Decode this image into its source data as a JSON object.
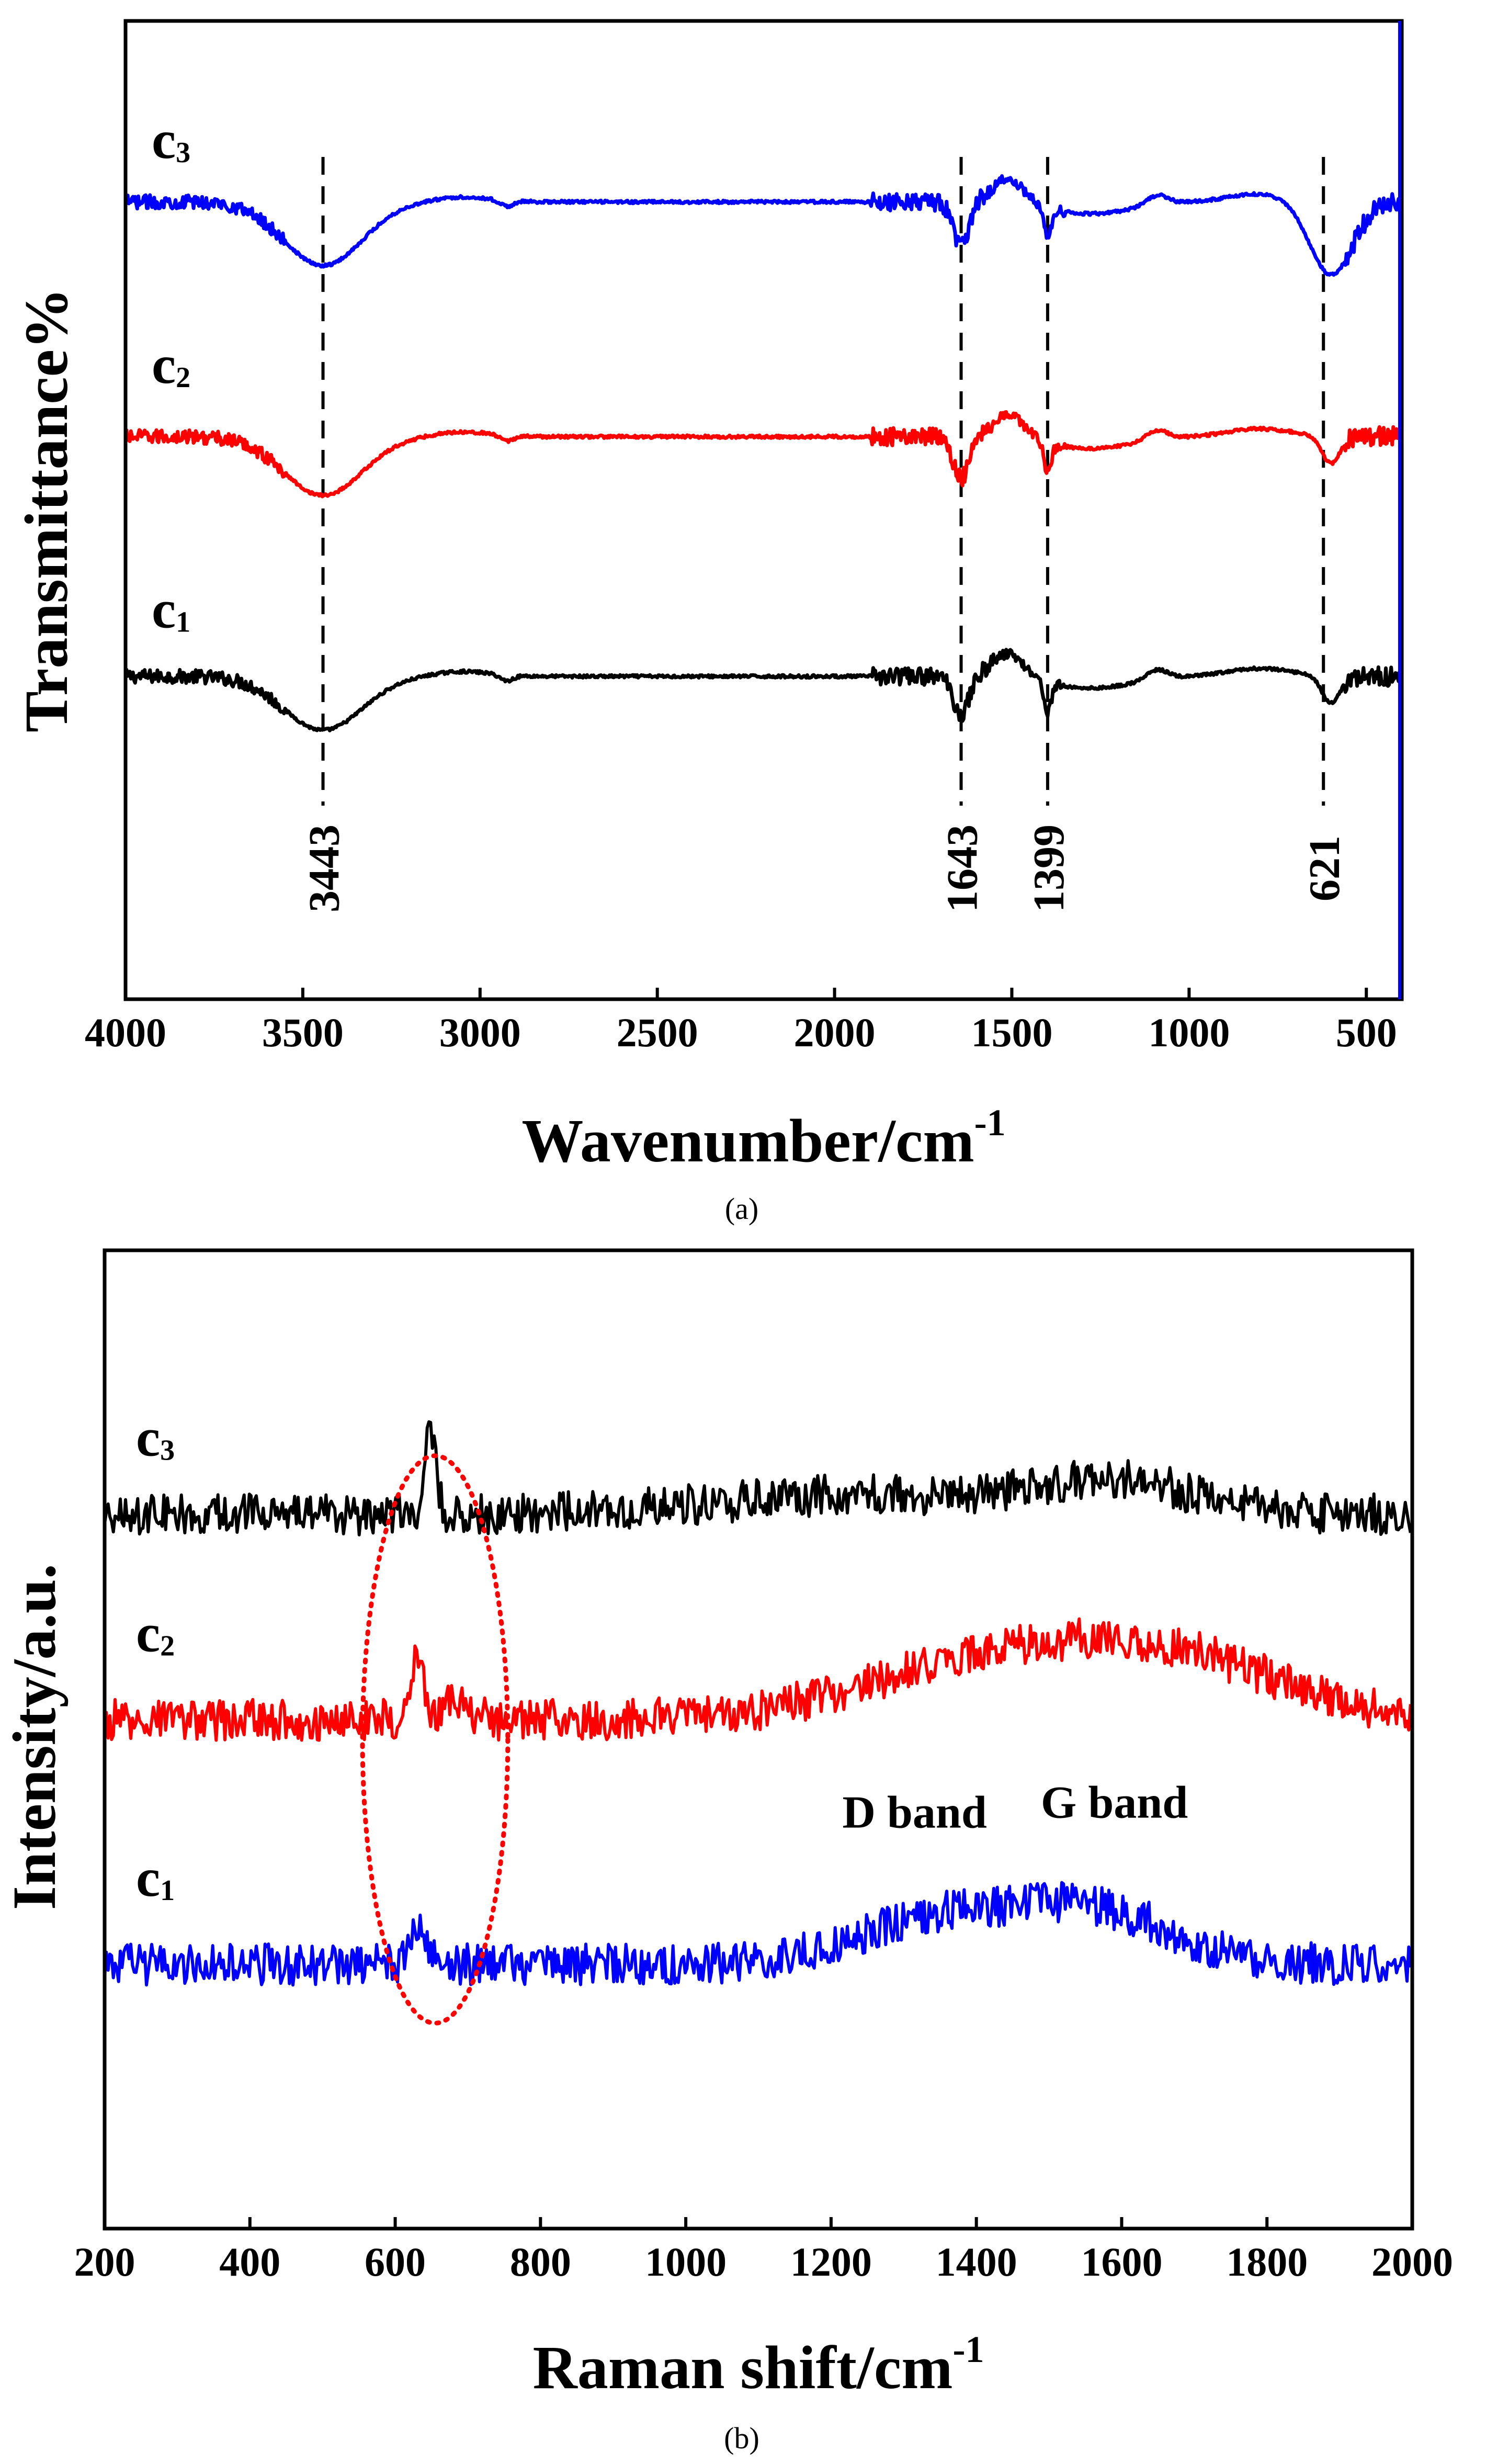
{
  "chart_data": [
    {
      "id": "a",
      "type": "line",
      "panel_caption": "(a)",
      "xlabel": "Wavenumber/cm",
      "xlabel_sup": "-1",
      "ylabel": "Transmittance%",
      "xlim": [
        4000,
        400
      ],
      "xticks": [
        4000,
        3500,
        3000,
        2500,
        2000,
        1500,
        1000,
        500
      ],
      "ylim": [
        0,
        10
      ],
      "grid": false,
      "legend": "none",
      "series": [
        {
          "name": "c1",
          "base": "c",
          "sub": "1",
          "color": "#000000",
          "offset": 3.3,
          "label_y": 3.8
        },
        {
          "name": "c2",
          "base": "c",
          "sub": "2",
          "color": "#ff0000",
          "offset": 5.75,
          "label_y": 6.3
        },
        {
          "name": "c3",
          "base": "c",
          "sub": "3",
          "color": "#0000ff",
          "offset": 8.1,
          "label_y": 8.6
        }
      ],
      "reference_lines": [
        {
          "x": 3443,
          "label": "3443"
        },
        {
          "x": 1643,
          "label": "1643"
        },
        {
          "x": 1399,
          "label": "1399"
        },
        {
          "x": 621,
          "label": "621"
        }
      ]
    },
    {
      "id": "b",
      "type": "line",
      "panel_caption": "(b)",
      "xlabel": "Raman shift/cm",
      "xlabel_sup": "-1",
      "ylabel": "Intensity/a.u.",
      "xlim": [
        200,
        2000
      ],
      "xticks": [
        200,
        400,
        600,
        800,
        1000,
        1200,
        1400,
        1600,
        1800,
        2000
      ],
      "ylim": [
        0,
        10
      ],
      "grid": false,
      "legend": "none",
      "series": [
        {
          "name": "c1",
          "base": "c",
          "sub": "1",
          "color": "#0000ff",
          "offset": 2.7,
          "label_y": 3.4
        },
        {
          "name": "c2",
          "base": "c",
          "sub": "2",
          "color": "#ff0000",
          "offset": 5.2,
          "label_y": 5.9
        },
        {
          "name": "c3",
          "base": "c",
          "sub": "3",
          "color": "#000000",
          "offset": 7.3,
          "label_y": 7.9
        }
      ],
      "annotations": [
        {
          "text": "D band",
          "x": 1315,
          "y": 4.1
        },
        {
          "text": "G band",
          "x": 1590,
          "y": 4.2
        }
      ],
      "highlight_ellipse": {
        "cx": 655,
        "cy": 5.0,
        "rx": 100,
        "ry": 2.9,
        "color": "#ff0000",
        "style": "dotted"
      }
    }
  ]
}
